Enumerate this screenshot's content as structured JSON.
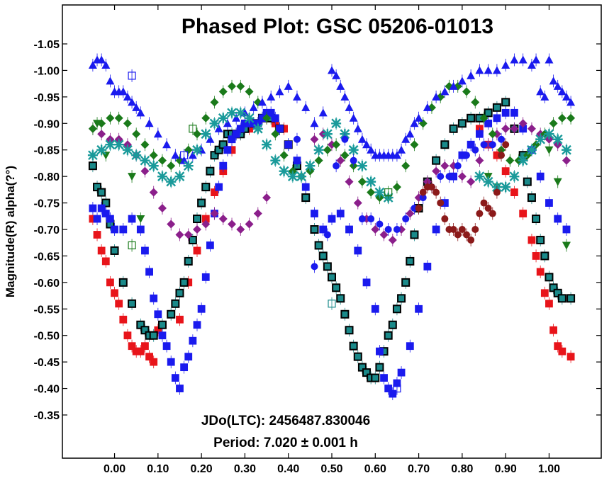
{
  "chart_data": {
    "type": "scatter",
    "title": "Phased Plot: GSC 05206-01013",
    "xlabel": "",
    "ylabel": "Magnitude(R) alpha(?°)",
    "xlim": [
      -0.12,
      1.12
    ],
    "ylim": [
      -1.1,
      -0.28
    ],
    "y_inverted": true,
    "x_ticks": [
      "0.00",
      "0.10",
      "0.20",
      "0.30",
      "0.40",
      "0.50",
      "0.60",
      "0.70",
      "0.80",
      "0.90",
      "1.00"
    ],
    "y_ticks": [
      "-1.05",
      "-1.00",
      "-0.95",
      "-0.90",
      "-0.85",
      "-0.80",
      "-0.75",
      "-0.70",
      "-0.65",
      "-0.60",
      "-0.55",
      "-0.50",
      "-0.45",
      "-0.40",
      "-0.35"
    ],
    "grid": false,
    "annotations": {
      "jd": "JDo(LTC): 2456487.830046",
      "period": "Period: 7.020 ± 0.001 h"
    },
    "series": [
      {
        "marker": "square",
        "color": "#e8141a",
        "x": [
          -0.05,
          -0.04,
          -0.03,
          -0.02,
          -0.01,
          0.0,
          0.01,
          0.02,
          0.03,
          0.04,
          0.05,
          0.06,
          0.07,
          0.08,
          0.09,
          0.1,
          0.15,
          0.17,
          0.19,
          0.21,
          0.23,
          0.25,
          0.27,
          0.29,
          0.31,
          0.33,
          0.35,
          0.37,
          0.39,
          0.84,
          0.86,
          0.88,
          0.9,
          0.92,
          0.94,
          0.96,
          0.97,
          0.98,
          0.99,
          1.0,
          1.01,
          1.02,
          1.03,
          1.05
        ],
        "y": [
          -0.72,
          -0.69,
          -0.66,
          -0.64,
          -0.6,
          -0.58,
          -0.56,
          -0.53,
          -0.5,
          -0.48,
          -0.47,
          -0.47,
          -0.48,
          -0.46,
          -0.45,
          -0.51,
          -0.53,
          -0.6,
          -0.66,
          -0.72,
          -0.77,
          -0.81,
          -0.85,
          -0.88,
          -0.89,
          -0.9,
          -0.91,
          -0.9,
          -0.89,
          -0.89,
          -0.86,
          -0.84,
          -0.81,
          -0.77,
          -0.73,
          -0.68,
          -0.65,
          -0.62,
          -0.58,
          -0.56,
          -0.51,
          -0.48,
          -0.47,
          -0.46
        ]
      },
      {
        "marker": "square",
        "color": "#1a8a8a",
        "stroke": "#000000",
        "x": [
          -0.05,
          -0.04,
          -0.03,
          -0.02,
          -0.01,
          0.0,
          0.02,
          0.04,
          0.06,
          0.07,
          0.08,
          0.09,
          0.11,
          0.13,
          0.14,
          0.15,
          0.16,
          0.17,
          0.18,
          0.19,
          0.2,
          0.21,
          0.22,
          0.23,
          0.24,
          0.25,
          0.26,
          0.27,
          0.28,
          0.29,
          0.3,
          0.32,
          0.34,
          0.36,
          0.38,
          0.4,
          0.42,
          0.44,
          0.46,
          0.47,
          0.48,
          0.49,
          0.5,
          0.51,
          0.52,
          0.53,
          0.54,
          0.55,
          0.56,
          0.57,
          0.58,
          0.59,
          0.6,
          0.61,
          0.62,
          0.63,
          0.64,
          0.65,
          0.66,
          0.67,
          0.68,
          0.69,
          0.7,
          0.72,
          0.74,
          0.76,
          0.78,
          0.8,
          0.82,
          0.84,
          0.86,
          0.88,
          0.9,
          0.92,
          0.94,
          0.95,
          0.96,
          0.97,
          0.98,
          0.99,
          1.0,
          1.01,
          1.02,
          1.03,
          1.05
        ],
        "y": [
          -0.82,
          -0.78,
          -0.77,
          -0.75,
          -0.71,
          -0.66,
          -0.6,
          -0.56,
          -0.52,
          -0.51,
          -0.5,
          -0.5,
          -0.52,
          -0.54,
          -0.56,
          -0.58,
          -0.6,
          -0.64,
          -0.68,
          -0.72,
          -0.75,
          -0.78,
          -0.81,
          -0.84,
          -0.85,
          -0.86,
          -0.88,
          -0.88,
          -0.88,
          -0.88,
          -0.89,
          -0.9,
          -0.91,
          -0.91,
          -0.89,
          -0.86,
          -0.82,
          -0.76,
          -0.7,
          -0.67,
          -0.65,
          -0.63,
          -0.61,
          -0.59,
          -0.57,
          -0.54,
          -0.51,
          -0.48,
          -0.46,
          -0.44,
          -0.43,
          -0.42,
          -0.42,
          -0.44,
          -0.47,
          -0.5,
          -0.52,
          -0.55,
          -0.57,
          -0.6,
          -0.64,
          -0.69,
          -0.74,
          -0.79,
          -0.83,
          -0.86,
          -0.89,
          -0.9,
          -0.91,
          -0.91,
          -0.92,
          -0.93,
          -0.94,
          -0.89,
          -0.84,
          -0.79,
          -0.76,
          -0.72,
          -0.68,
          -0.65,
          -0.61,
          -0.59,
          -0.58,
          -0.57,
          -0.57
        ]
      },
      {
        "marker": "square",
        "color": "#1a1aee",
        "x": [
          -0.05,
          -0.04,
          -0.03,
          -0.02,
          -0.01,
          0.0,
          0.02,
          0.04,
          0.06,
          0.07,
          0.08,
          0.09,
          0.1,
          0.11,
          0.12,
          0.13,
          0.14,
          0.15,
          0.16,
          0.17,
          0.18,
          0.19,
          0.2,
          0.21,
          0.22,
          0.23,
          0.24,
          0.25,
          0.26,
          0.27,
          0.28,
          0.29,
          0.3,
          0.31,
          0.32,
          0.33,
          0.34,
          0.35,
          0.36,
          0.37,
          0.38,
          0.4,
          0.42,
          0.44,
          0.46,
          0.48,
          0.5,
          0.52,
          0.54,
          0.56,
          0.58,
          0.6,
          0.61,
          0.62,
          0.63,
          0.64,
          0.65,
          0.66,
          0.68,
          0.7,
          0.72,
          0.74,
          0.76,
          0.78,
          0.8,
          0.82,
          0.84,
          0.86,
          0.88,
          0.9,
          0.92,
          0.94,
          0.96,
          0.98,
          1.0,
          1.02,
          1.04
        ],
        "y": [
          -0.74,
          -0.72,
          -0.74,
          -0.73,
          -0.72,
          -0.7,
          -0.7,
          -0.72,
          -0.7,
          -0.66,
          -0.62,
          -0.57,
          -0.54,
          -0.5,
          -0.48,
          -0.45,
          -0.42,
          -0.4,
          -0.44,
          -0.46,
          -0.49,
          -0.52,
          -0.55,
          -0.61,
          -0.67,
          -0.73,
          -0.78,
          -0.82,
          -0.85,
          -0.87,
          -0.88,
          -0.89,
          -0.9,
          -0.9,
          -0.9,
          -0.9,
          -0.91,
          -0.92,
          -0.92,
          -0.91,
          -0.89,
          -0.86,
          -0.83,
          -0.78,
          -0.73,
          -0.7,
          -0.72,
          -0.73,
          -0.7,
          -0.66,
          -0.6,
          -0.55,
          -0.47,
          -0.42,
          -0.4,
          -0.39,
          -0.41,
          -0.43,
          -0.48,
          -0.55,
          -0.63,
          -0.7,
          -0.75,
          -0.8,
          -0.84,
          -0.86,
          -0.88,
          -0.9,
          -0.91,
          -0.92,
          -0.92,
          -0.89,
          -0.85,
          -0.8,
          -0.75,
          -0.72,
          -0.7
        ]
      },
      {
        "marker": "diamond",
        "color": "#8b1f8b",
        "x": [
          -0.05,
          -0.03,
          -0.01,
          0.01,
          0.03,
          0.05,
          0.07,
          0.09,
          0.11,
          0.13,
          0.15,
          0.17,
          0.19,
          0.21,
          0.23,
          0.25,
          0.27,
          0.29,
          0.31,
          0.33,
          0.35,
          0.46,
          0.48,
          0.5,
          0.52,
          0.54,
          0.56,
          0.58,
          0.6,
          0.62,
          0.64,
          0.66,
          0.68,
          0.7,
          0.72,
          0.74,
          0.76,
          0.78,
          0.8,
          0.82,
          0.84,
          0.86,
          0.88,
          0.9,
          0.92,
          0.94,
          0.96,
          0.98,
          1.0,
          1.02,
          1.04
        ],
        "y": [
          -0.89,
          -0.88,
          -0.87,
          -0.87,
          -0.86,
          -0.84,
          -0.81,
          -0.77,
          -0.74,
          -0.71,
          -0.69,
          -0.69,
          -0.7,
          -0.71,
          -0.73,
          -0.72,
          -0.71,
          -0.7,
          -0.71,
          -0.73,
          -0.76,
          -0.87,
          -0.88,
          -0.86,
          -0.83,
          -0.79,
          -0.75,
          -0.72,
          -0.7,
          -0.69,
          -0.68,
          -0.7,
          -0.73,
          -0.76,
          -0.79,
          -0.81,
          -0.82,
          -0.82,
          -0.8,
          -0.79,
          -0.83,
          -0.86,
          -0.88,
          -0.89,
          -0.89,
          -0.9,
          -0.89,
          -0.88,
          -0.87,
          -0.86,
          -0.83
        ]
      },
      {
        "marker": "diamond",
        "color": "#1a7a1a",
        "x": [
          -0.05,
          -0.03,
          -0.01,
          0.01,
          0.03,
          0.05,
          0.07,
          0.09,
          0.11,
          0.13,
          0.15,
          0.17,
          0.19,
          0.21,
          0.23,
          0.25,
          0.27,
          0.29,
          0.31,
          0.33,
          0.35,
          0.37,
          0.39,
          0.41,
          0.43,
          0.45,
          0.47,
          0.49,
          0.51,
          0.53,
          0.55,
          0.57,
          0.59,
          0.61,
          0.63,
          0.65,
          0.67,
          0.69,
          0.71,
          0.73,
          0.75,
          0.77,
          0.79,
          0.81,
          0.83,
          0.85,
          0.87,
          0.89,
          0.91,
          0.93,
          0.95,
          0.97,
          0.99,
          1.01,
          1.03,
          1.05
        ],
        "y": [
          -0.89,
          -0.9,
          -0.91,
          -0.91,
          -0.9,
          -0.88,
          -0.86,
          -0.84,
          -0.83,
          -0.82,
          -0.83,
          -0.85,
          -0.88,
          -0.91,
          -0.94,
          -0.96,
          -0.97,
          -0.97,
          -0.96,
          -0.94,
          -0.91,
          -0.88,
          -0.84,
          -0.81,
          -0.8,
          -0.81,
          -0.83,
          -0.85,
          -0.86,
          -0.84,
          -0.82,
          -0.79,
          -0.77,
          -0.76,
          -0.76,
          -0.78,
          -0.82,
          -0.86,
          -0.9,
          -0.93,
          -0.95,
          -0.97,
          -0.97,
          -0.96,
          -0.94,
          -0.91,
          -0.88,
          -0.85,
          -0.83,
          -0.83,
          -0.84,
          -0.86,
          -0.88,
          -0.9,
          -0.91,
          -0.91
        ]
      },
      {
        "marker": "triangle-down",
        "color": "#1a7a1a",
        "x": [
          -0.04,
          -0.02,
          0.04,
          0.06,
          0.86,
          0.88,
          1.0,
          1.02,
          1.04
        ],
        "y": [
          -0.9,
          -0.84,
          -0.8,
          -0.72,
          -0.8,
          -0.78,
          -0.85,
          -0.79,
          -0.67
        ]
      },
      {
        "marker": "triangle-up",
        "color": "#1a1aee",
        "x": [
          -0.05,
          -0.04,
          -0.03,
          -0.02,
          -0.01,
          0.0,
          0.01,
          0.02,
          0.03,
          0.04,
          0.05,
          0.06,
          0.08,
          0.1,
          0.12,
          0.14,
          0.16,
          0.18,
          0.2,
          0.22,
          0.24,
          0.26,
          0.28,
          0.3,
          0.32,
          0.34,
          0.36,
          0.38,
          0.4,
          0.42,
          0.44,
          0.46,
          0.48,
          0.5,
          0.51,
          0.52,
          0.53,
          0.54,
          0.55,
          0.56,
          0.57,
          0.58,
          0.59,
          0.6,
          0.61,
          0.62,
          0.63,
          0.64,
          0.65,
          0.66,
          0.67,
          0.68,
          0.69,
          0.7,
          0.72,
          0.74,
          0.76,
          0.78,
          0.8,
          0.82,
          0.84,
          0.86,
          0.88,
          0.9,
          0.92,
          0.94,
          0.96,
          0.97,
          0.98,
          0.99,
          1.0,
          1.01,
          1.02,
          1.03,
          1.04,
          1.05
        ],
        "y": [
          -1.01,
          -1.02,
          -1.02,
          -1.01,
          -0.98,
          -0.96,
          -0.96,
          -0.96,
          -0.95,
          -0.94,
          -0.93,
          -0.92,
          -0.9,
          -0.88,
          -0.86,
          -0.84,
          -0.83,
          -0.84,
          -0.85,
          -0.87,
          -0.89,
          -0.9,
          -0.91,
          -0.92,
          -0.93,
          -0.94,
          -0.95,
          -0.96,
          -0.97,
          -0.95,
          -0.93,
          -0.9,
          -0.92,
          -1.0,
          -0.99,
          -0.97,
          -0.95,
          -0.93,
          -0.91,
          -0.89,
          -0.87,
          -0.86,
          -0.85,
          -0.84,
          -0.84,
          -0.84,
          -0.84,
          -0.84,
          -0.84,
          -0.85,
          -0.87,
          -0.88,
          -0.9,
          -0.91,
          -0.93,
          -0.95,
          -0.96,
          -0.97,
          -0.98,
          -0.99,
          -1.0,
          -1.0,
          -1.0,
          -1.01,
          -1.02,
          -1.02,
          -1.01,
          -1.02,
          -0.96,
          -0.95,
          -1.02,
          -0.98,
          -0.97,
          -0.96,
          -0.95,
          -0.94
        ]
      },
      {
        "marker": "cross",
        "color": "#1a9a9a",
        "x": [
          -0.05,
          -0.03,
          -0.01,
          0.01,
          0.03,
          0.05,
          0.07,
          0.09,
          0.11,
          0.13,
          0.15,
          0.17,
          0.19,
          0.21,
          0.23,
          0.25,
          0.27,
          0.29,
          0.31,
          0.33,
          0.35,
          0.37,
          0.39,
          0.41,
          0.43,
          0.45,
          0.47,
          0.49,
          0.51,
          0.53,
          0.55,
          0.57,
          0.59,
          0.61,
          0.63,
          0.84,
          0.86,
          0.88,
          0.9,
          0.92,
          0.94,
          0.96,
          0.98,
          1.0,
          1.02,
          1.04
        ],
        "y": [
          -0.84,
          -0.85,
          -0.86,
          -0.86,
          -0.85,
          -0.84,
          -0.83,
          -0.82,
          -0.8,
          -0.79,
          -0.8,
          -0.82,
          -0.85,
          -0.88,
          -0.9,
          -0.91,
          -0.92,
          -0.92,
          -0.91,
          -0.89,
          -0.86,
          -0.83,
          -0.81,
          -0.8,
          -0.8,
          -0.82,
          -0.85,
          -0.88,
          -0.9,
          -0.88,
          -0.85,
          -0.82,
          -0.79,
          -0.77,
          -0.76,
          -0.8,
          -0.79,
          -0.78,
          -0.78,
          -0.8,
          -0.83,
          -0.85,
          -0.87,
          -0.88,
          -0.87,
          -0.85
        ]
      },
      {
        "marker": "circle",
        "color": "#1a1aee",
        "x": [
          0.42,
          0.46,
          0.49,
          0.51,
          0.53,
          0.55,
          0.57,
          0.59,
          0.61,
          0.63,
          0.65,
          0.67,
          0.69,
          0.71,
          0.73,
          0.75,
          0.77,
          0.79,
          0.81,
          0.83,
          0.85,
          0.87,
          0.89
        ],
        "y": [
          -0.87,
          -0.63,
          -0.69,
          -0.82,
          -0.87,
          -0.83,
          -0.72,
          -0.72,
          -0.71,
          -0.7,
          -0.7,
          -0.72,
          -0.74,
          -0.76,
          -0.78,
          -0.8,
          -0.8,
          -0.82,
          -0.84,
          -0.85,
          -0.86,
          -0.86,
          -0.87
        ]
      },
      {
        "marker": "circle",
        "color": "#8b1a1a",
        "x": [
          0.7,
          0.71,
          0.72,
          0.73,
          0.74,
          0.75,
          0.76,
          0.77,
          0.78,
          0.79,
          0.8,
          0.81,
          0.82,
          0.83,
          0.84,
          0.85,
          0.86,
          0.87,
          0.88,
          0.89,
          0.9
        ],
        "y": [
          -0.74,
          -0.77,
          -0.78,
          -0.78,
          -0.77,
          -0.75,
          -0.72,
          -0.7,
          -0.7,
          -0.69,
          -0.7,
          -0.69,
          -0.68,
          -0.7,
          -0.73,
          -0.75,
          -0.74,
          -0.73,
          -0.77,
          -0.84,
          -0.86
        ]
      },
      {
        "marker": "open-square",
        "color": "#1a1aee",
        "x": [
          0.04,
          0.16,
          0.65
        ],
        "y": [
          -0.99,
          -0.84,
          -0.4
        ]
      },
      {
        "marker": "open-square",
        "color": "#1a7a1a",
        "x": [
          0.04,
          0.18,
          0.63
        ],
        "y": [
          -0.67,
          -0.89,
          -0.77
        ]
      },
      {
        "marker": "open-square",
        "color": "#1a8a8a",
        "x": [
          0.5
        ],
        "y": [
          -0.56
        ]
      }
    ]
  }
}
